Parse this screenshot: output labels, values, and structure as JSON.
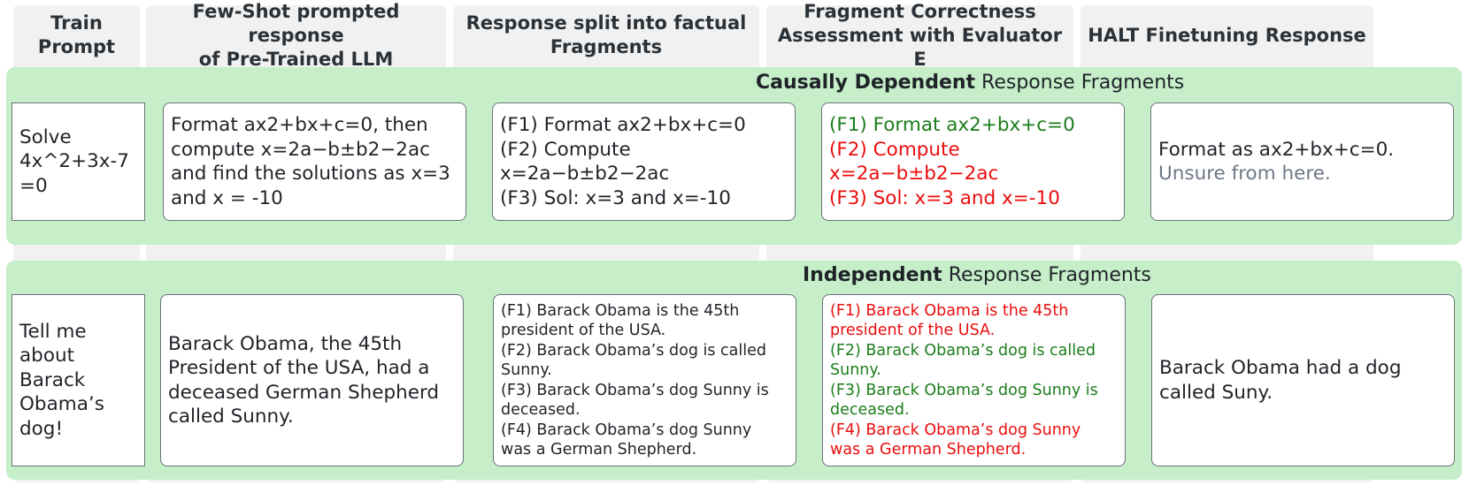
{
  "columns": [
    {
      "id": "train-prompt",
      "header": "Train Prompt",
      "header_lines": [
        "Train",
        "Prompt"
      ]
    },
    {
      "id": "few-shot",
      "header": "Few-Shot prompted response of Pre-Trained LLM",
      "header_lines": [
        "Few-Shot prompted response",
        "of Pre-Trained LLM"
      ]
    },
    {
      "id": "split",
      "header": "Response split into factual Fragments",
      "header_lines": [
        "Response split into factual",
        "Fragments"
      ]
    },
    {
      "id": "assessment",
      "header": "Fragment Correctness Assessment with Evaluator E",
      "header_lines": [
        "Fragment Correctness",
        "Assessment with Evaluator E"
      ]
    },
    {
      "id": "halt",
      "header": "HALT Finetuning Response",
      "header_lines": [
        "HALT Finetuning Response"
      ]
    }
  ],
  "sections": [
    {
      "id": "causal",
      "title_bold": "Causally Dependent",
      "title_rest": " Response Fragments",
      "prompt_lines": [
        "Solve",
        "4x^2+3x-7",
        "=0"
      ],
      "response_lines": [
        "Format  ax2+bx+c=0, then",
        "compute x=2a−b±b2−2ac",
        "and find the solutions as x=3",
        "and x = -10"
      ],
      "fragments": [
        {
          "label": "(F1) Format  ax2+bx+c=0",
          "lines": [
            "(F1) Format  ax2+bx+c=0"
          ],
          "correct": true
        },
        {
          "label": "(F2) Compute x=2a−b±b2−2ac",
          "lines": [
            "(F2) Compute",
            "x=2a−b±b2−2ac"
          ],
          "correct": false
        },
        {
          "label": "(F3) Sol: x=3 and x=-10",
          "lines": [
            "(F3) Sol: x=3 and x=-10"
          ],
          "correct": false
        }
      ],
      "halt_lines": [
        {
          "text": "Format  as ax2+bx+c=0.",
          "style": "normal"
        },
        {
          "text": "Unsure from here.",
          "style": "muted"
        }
      ]
    },
    {
      "id": "independent",
      "title_bold": "Independent",
      "title_rest": " Response Fragments",
      "prompt_lines": [
        "Tell me",
        "about",
        "Barack",
        "Obama’s",
        "dog!"
      ],
      "response_lines": [
        "Barack Obama, the 45th",
        "President of the USA, had a",
        "deceased German Shepherd",
        "called Sunny."
      ],
      "fragments": [
        {
          "label": "(F1) Barack Obama is the 45th president of the USA.",
          "lines": [
            "(F1) Barack Obama is the 45th",
            "president of the USA."
          ],
          "correct": false
        },
        {
          "label": "(F2) Barack Obama’s dog is called Sunny.",
          "lines": [
            "(F2) Barack Obama’s dog is called",
            "Sunny."
          ],
          "correct": true
        },
        {
          "label": "(F3) Barack Obama’s dog Sunny is deceased.",
          "lines": [
            "(F3) Barack Obama’s dog Sunny is",
            "deceased."
          ],
          "correct": true
        },
        {
          "label": "(F4) Barack Obama’s  dog Sunny was a German Shepherd.",
          "lines": [
            "(F4) Barack Obama’s  dog Sunny",
            "was a German Shepherd."
          ],
          "correct": false
        }
      ],
      "halt_lines": [
        {
          "text": "Barack Obama had a dog",
          "style": "normal"
        },
        {
          "text": "called Suny.",
          "style": "normal"
        }
      ]
    }
  ],
  "colors": {
    "correct": "#1b7d1b",
    "incorrect": "#ea0d0d",
    "muted": "#6d7885",
    "band": "#c5eec9",
    "column": "#f1f1f1"
  }
}
